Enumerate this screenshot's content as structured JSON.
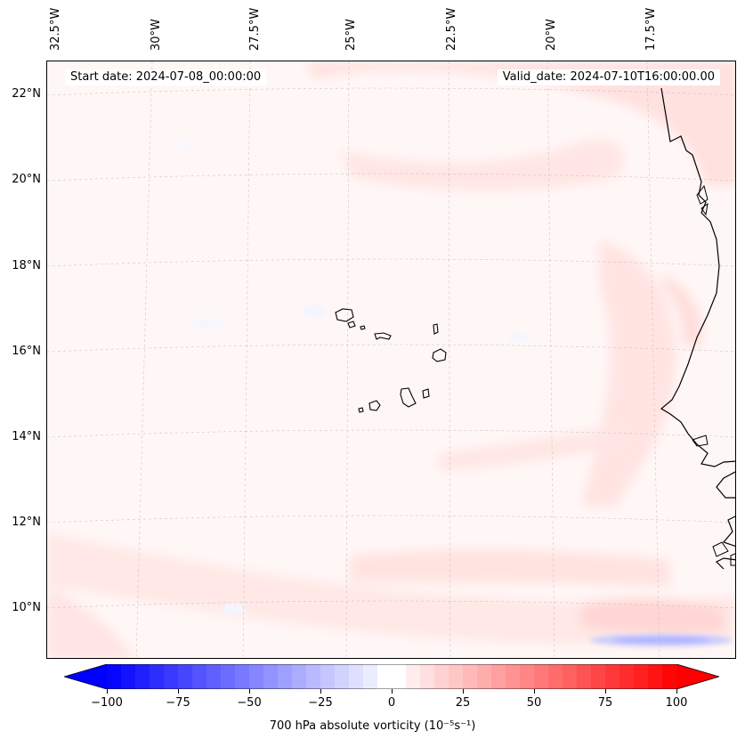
{
  "map": {
    "title_left": "Start date: 2024-07-08_00:00:00",
    "title_right": "Valid_date: 2024-07-10T16:00:00.00",
    "longitude_labels": [
      "32.5°W",
      "30°W",
      "27.5°W",
      "25°W",
      "22.5°W",
      "20°W",
      "17.5°W"
    ],
    "latitude_labels": [
      "22°N",
      "20°N",
      "18°N",
      "16°N",
      "14°N",
      "12°N",
      "10°N"
    ],
    "region": "Cape Verde Islands and West African coast",
    "colors": {
      "positive": "#ff0000",
      "negative": "#0000ff",
      "neutral": "#ffffff",
      "coastline": "#000000"
    }
  },
  "colorbar": {
    "label": "700 hPa absolute vorticity (10⁻⁵s⁻¹)",
    "min": -100,
    "max": 100,
    "ticks": [
      "−100",
      "−75",
      "−50",
      "−25",
      "0",
      "25",
      "50",
      "75",
      "100"
    ],
    "levels": 40
  }
}
